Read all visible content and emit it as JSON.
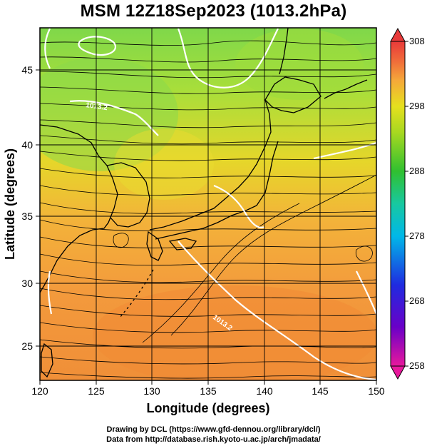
{
  "title": "MSM 12Z18Sep2023 (1013.2hPa)",
  "x_axis": {
    "label": "Longitude (degrees)",
    "range": [
      120,
      150
    ],
    "ticks": [
      "120",
      "125",
      "130",
      "135",
      "140",
      "145",
      "150"
    ]
  },
  "y_axis": {
    "label": "Latitude  (degrees)",
    "range": [
      22.4,
      47.6
    ],
    "ticks": [
      "25",
      "30",
      "35",
      "40",
      "45"
    ]
  },
  "colorbar": {
    "range": [
      258,
      308
    ],
    "ticks": [
      "308",
      "298",
      "288",
      "278",
      "268",
      "258"
    ],
    "colors": [
      "#e8189c",
      "#5a00c8",
      "#1f2be0",
      "#00b8e8",
      "#18c8b0",
      "#30c030",
      "#8ad020",
      "#e6e01e",
      "#f5a83a",
      "#f06b3a",
      "#e83a3a"
    ]
  },
  "contour_labels": [
    "1013.2",
    "1013.2"
  ],
  "credits": [
    "Drawing by DCL (https://www.gfd-dennou.org/library/dcl/)",
    "Data from http://database.rish.kyoto-u.ac.jp/arch/jmadata/"
  ]
}
